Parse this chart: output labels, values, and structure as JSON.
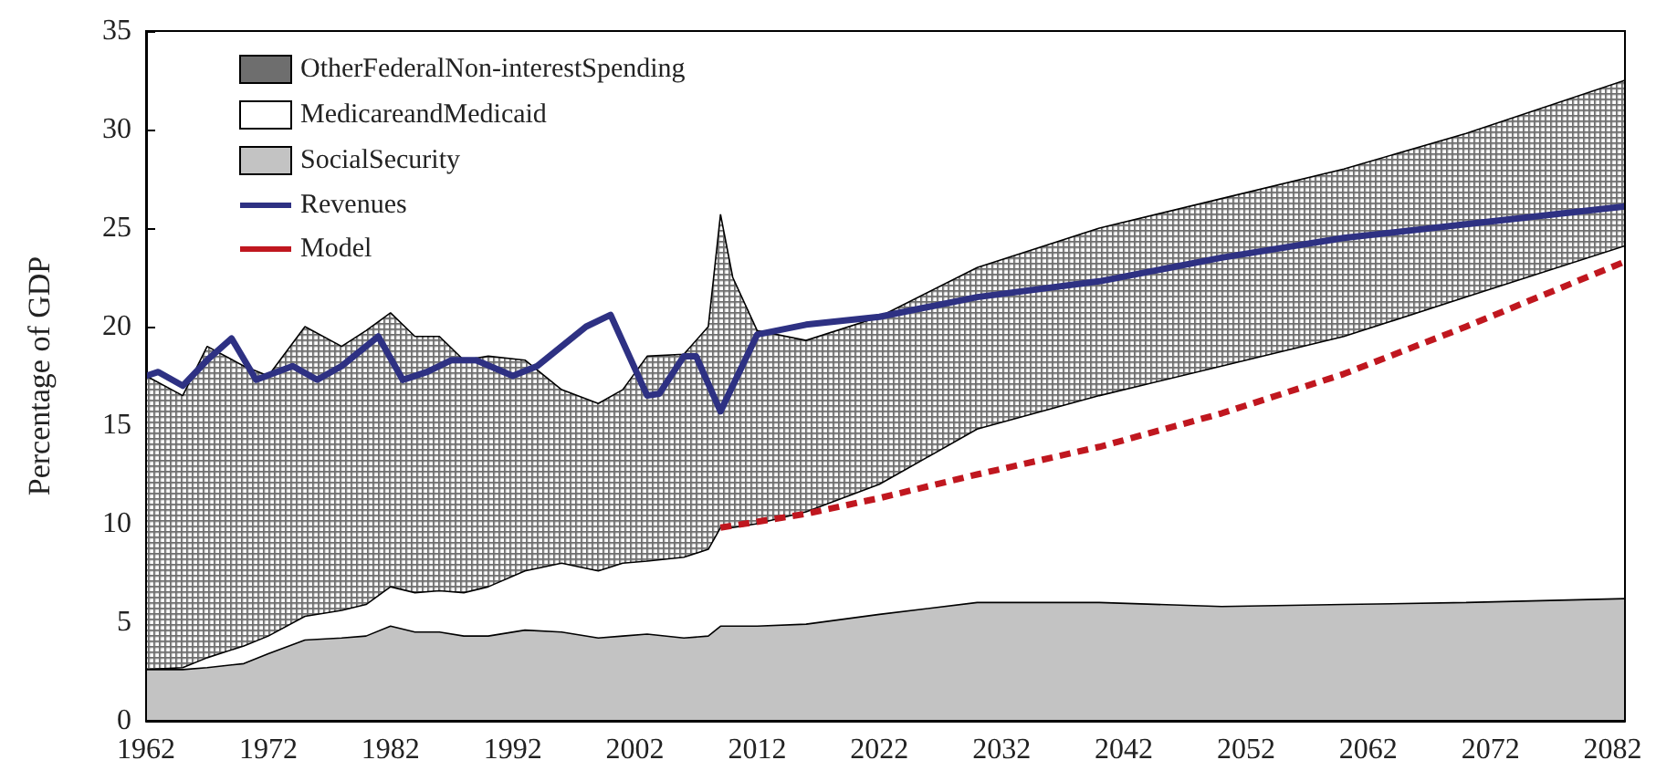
{
  "chart_data": {
    "type": "area",
    "stacked": true,
    "ylabel": "Percentage of GDP",
    "x": [
      1962,
      1965,
      1967,
      1970,
      1972,
      1975,
      1978,
      1980,
      1982,
      1984,
      1986,
      1988,
      1990,
      1993,
      1996,
      1999,
      2001,
      2003,
      2006,
      2008,
      2009,
      2010,
      2012,
      2016,
      2022,
      2030,
      2040,
      2050,
      2060,
      2070,
      2083
    ],
    "series": [
      {
        "name": "SocialSecurity",
        "color": "#c3c3c3",
        "values": [
          2.6,
          2.6,
          2.7,
          2.9,
          3.4,
          4.1,
          4.2,
          4.3,
          4.8,
          4.5,
          4.5,
          4.3,
          4.3,
          4.6,
          4.5,
          4.2,
          4.3,
          4.4,
          4.2,
          4.3,
          4.8,
          4.8,
          4.8,
          4.9,
          5.4,
          6.0,
          6.0,
          5.8,
          5.9,
          6.0,
          6.2
        ]
      },
      {
        "name": "MedicareandMedicaid",
        "color": "#ffffff",
        "values": [
          0.0,
          0.1,
          0.5,
          0.9,
          0.9,
          1.2,
          1.4,
          1.6,
          2.0,
          2.0,
          2.1,
          2.2,
          2.5,
          3.0,
          3.5,
          3.4,
          3.7,
          3.7,
          4.1,
          4.4,
          5.0,
          5.0,
          5.2,
          5.7,
          6.6,
          8.8,
          10.5,
          12.2,
          13.6,
          15.5,
          17.9
        ]
      },
      {
        "name": "OtherFederalNon-interestSpending",
        "color": "#6e6e6e",
        "values": [
          14.9,
          13.8,
          15.8,
          14.2,
          13.2,
          14.7,
          13.4,
          13.9,
          13.9,
          13.0,
          12.9,
          11.8,
          11.7,
          10.7,
          8.8,
          8.5,
          8.8,
          10.4,
          10.3,
          11.3,
          15.9,
          12.7,
          9.8,
          8.7,
          8.5,
          8.2,
          8.5,
          8.5,
          8.5,
          8.3,
          8.4
        ]
      },
      {
        "name": "Revenues",
        "type": "line",
        "color": "#2e3183",
        "line_style": "solid",
        "x": [
          1962,
          1963,
          1965,
          1967,
          1969,
          1971,
          1974,
          1976,
          1978,
          1981,
          1983,
          1985,
          1987,
          1989,
          1992,
          1994,
          1998,
          2000,
          2003,
          2004,
          2006,
          2007,
          2009,
          2012,
          2016,
          2022,
          2030,
          2040,
          2050,
          2060,
          2070,
          2083
        ],
        "values": [
          17.5,
          17.7,
          17.0,
          18.3,
          19.4,
          17.3,
          18.0,
          17.3,
          18.0,
          19.5,
          17.3,
          17.7,
          18.3,
          18.3,
          17.5,
          18.0,
          20.0,
          20.6,
          16.5,
          16.6,
          18.5,
          18.5,
          15.7,
          19.6,
          20.1,
          20.5,
          21.5,
          22.3,
          23.5,
          24.5,
          25.2,
          26.1
        ]
      },
      {
        "name": "Model",
        "type": "line",
        "color": "#c0171f",
        "line_style": "dashed",
        "x": [
          2009,
          2016,
          2022,
          2030,
          2040,
          2050,
          2060,
          2070,
          2083
        ],
        "values": [
          9.8,
          10.5,
          11.3,
          12.5,
          13.9,
          15.6,
          17.6,
          20.0,
          23.3
        ]
      }
    ],
    "xlim": [
      1962,
      2083
    ],
    "xticks": [
      1962,
      1972,
      1982,
      1992,
      2002,
      2012,
      2022,
      2032,
      2042,
      2052,
      2062,
      2072,
      2082
    ],
    "ylim": [
      0,
      35
    ],
    "yticks": [
      0,
      5,
      10,
      15,
      20,
      25,
      30,
      35
    ],
    "grid": false,
    "legend": "top left",
    "marker": "none"
  }
}
